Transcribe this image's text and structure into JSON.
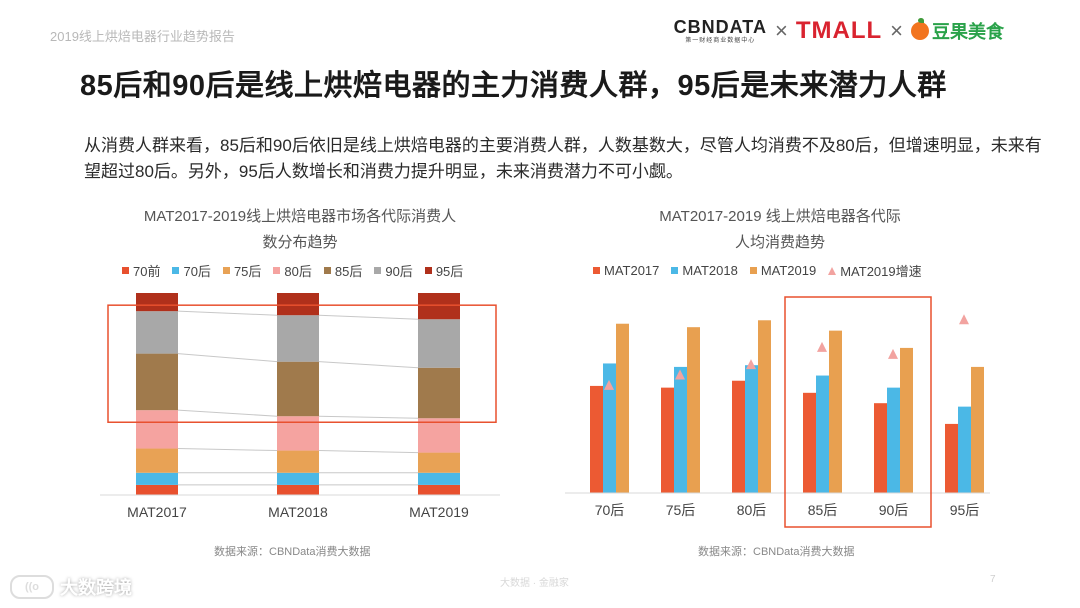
{
  "header": {
    "report_label": "2019线上烘焙电器行业趋势报告",
    "logos": {
      "cbndata": "CBNDATA",
      "cbndata_sub": "第一财经商业数据中心",
      "separator": "×",
      "tmall": "TMALL",
      "douguo": "豆果美食"
    }
  },
  "page_title": "85后和90后是线上烘焙电器的主力消费人群，95后是未来潜力人群",
  "summary": "从消费人群来看，85后和90后依旧是线上烘焙电器的主要消费人群，人数基数大，尽管人均消费不及80后，但增速明显，未来有望超过80后。另外，95后人数增长和消费力提升明显，未来消费潜力不可小觑。",
  "colors": {
    "70前": "#e8502e",
    "70后": "#4bb8e6",
    "75后": "#e8a255",
    "80后": "#f5a3a0",
    "85后": "#a07a4c",
    "90后": "#a8a8a8",
    "95后": "#b0301b",
    "MAT2017": "#ec5a33",
    "MAT2018": "#4bb8e6",
    "MAT2019": "#e8a050",
    "MAT2019增速": "#f2a3a0",
    "highlight_box": "#e8502e"
  },
  "chart_data": [
    {
      "type": "bar",
      "stacked": true,
      "percent": true,
      "title_lines": [
        "MAT2017-2019线上烘焙电器市场各代际消费人",
        "数分布趋势"
      ],
      "categories": [
        "MAT2017",
        "MAT2018",
        "MAT2019"
      ],
      "series": [
        {
          "name": "70前",
          "values": [
            5,
            5,
            5
          ]
        },
        {
          "name": "70后",
          "values": [
            6,
            6,
            6
          ]
        },
        {
          "name": "75后",
          "values": [
            12,
            11,
            10
          ]
        },
        {
          "name": "80后",
          "values": [
            19,
            17,
            17
          ]
        },
        {
          "name": "85后",
          "values": [
            28,
            27,
            25
          ]
        },
        {
          "name": "90后",
          "values": [
            21,
            23,
            24
          ]
        },
        {
          "name": "95后",
          "values": [
            9,
            11,
            13
          ]
        }
      ],
      "highlight_series": [
        "85后",
        "90后"
      ],
      "ylim": [
        0,
        100
      ],
      "source": "数据来源：CBNData消费大数据"
    },
    {
      "type": "bar",
      "title_lines": [
        "MAT2017-2019 线上烘焙电器各代际",
        "人均消费趋势"
      ],
      "categories": [
        "70后",
        "75后",
        "80后",
        "85后",
        "90后",
        "95后"
      ],
      "series": [
        {
          "name": "MAT2017",
          "values": [
            62,
            61,
            65,
            58,
            52,
            40
          ]
        },
        {
          "name": "MAT2018",
          "values": [
            75,
            73,
            74,
            68,
            61,
            50
          ]
        },
        {
          "name": "MAT2019",
          "values": [
            98,
            96,
            100,
            94,
            84,
            73
          ]
        }
      ],
      "growth_series": {
        "name": "MAT2019增速",
        "values": [
          62,
          68,
          74,
          84,
          80,
          100
        ]
      },
      "ylim": [
        0,
        110
      ],
      "highlight_categories": [
        "85后",
        "90后"
      ],
      "source": "数据来源：CBNData消费大数据"
    }
  ],
  "footer": {
    "brand": "大数跨境",
    "center_text": "大数据 · 金融家",
    "page_number": "7"
  }
}
